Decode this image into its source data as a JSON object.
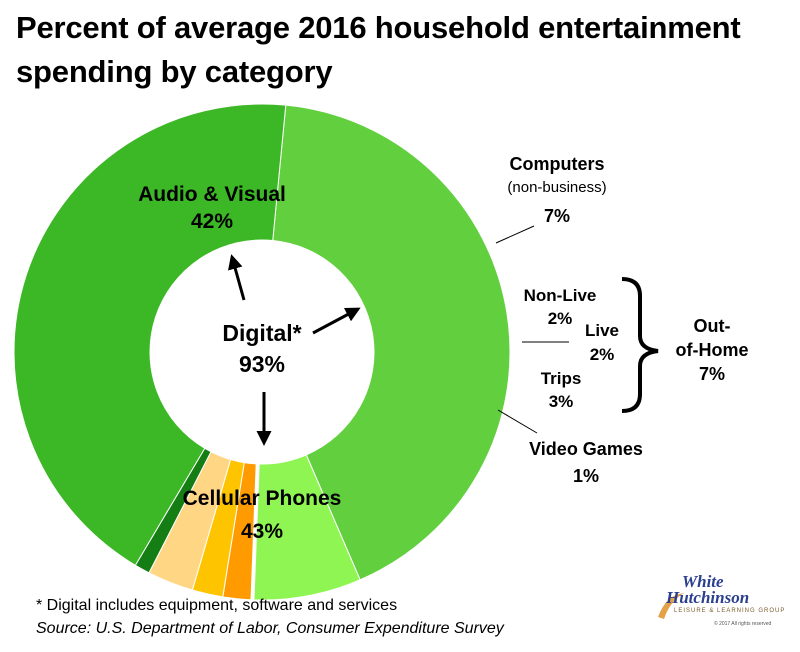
{
  "title_line1": "Percent of average 2016 household entertainment",
  "title_line2": "spending by category",
  "footnote": "* Digital includes equipment, software and services",
  "source": "Source: U.S. Department of Labor, Consumer Expenditure Survey",
  "logo": {
    "line1": "White",
    "line2": "Hutchinson",
    "tagline": "LEISURE & LEARNING GROUP",
    "copyright": "© 2017 All rights reserved"
  },
  "center_label": {
    "name": "Digital*",
    "value": "93%"
  },
  "out_of_home": {
    "line1": "Out-",
    "line2": "of-Home",
    "value": "7%"
  },
  "chart_data": {
    "type": "pie",
    "variant": "donut",
    "title": "Percent of average 2016 household entertainment spending by category",
    "slices": [
      {
        "name": "Audio & Visual",
        "value": 42,
        "label": "42%",
        "color": "#62cf3f"
      },
      {
        "name": "Computers",
        "sublabel": "(non-business)",
        "value": 7,
        "label": "7%",
        "color": "#8ef552"
      },
      {
        "name": "Non-Live",
        "value": 2,
        "label": "2%",
        "color": "#ff9a00"
      },
      {
        "name": "Live",
        "value": 2,
        "label": "2%",
        "color": "#ffc400"
      },
      {
        "name": "Trips",
        "value": 3,
        "label": "3%",
        "color": "#ffd684"
      },
      {
        "name": "Video Games",
        "value": 1,
        "label": "1%",
        "color": "#147d14"
      },
      {
        "name": "Cellular Phones",
        "value": 43,
        "label": "43%",
        "color": "#3cb725"
      }
    ],
    "groups": [
      {
        "name": "Digital*",
        "value": 93,
        "label": "93%"
      },
      {
        "name": "Out-of-Home",
        "value": 7,
        "label": "7%"
      }
    ]
  }
}
